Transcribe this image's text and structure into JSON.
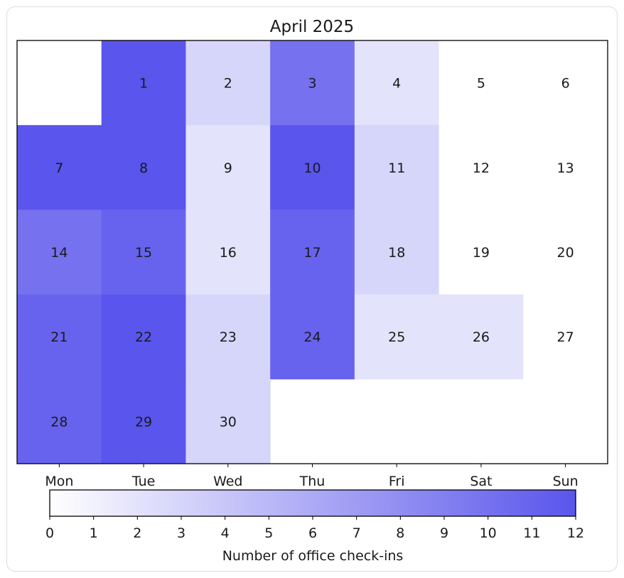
{
  "chart_data": {
    "type": "heatmap",
    "title": "April 2025",
    "x_labels": [
      "Mon",
      "Tue",
      "Wed",
      "Thu",
      "Fri",
      "Sat",
      "Sun"
    ],
    "colorbar": {
      "label": "Number of office check-ins",
      "min": 0,
      "max": 12,
      "ticks": [
        0,
        1,
        2,
        3,
        4,
        5,
        6,
        7,
        8,
        9,
        10,
        11,
        12
      ],
      "color_low": "#ffffff",
      "color_high": "#5a55ec"
    },
    "cells": [
      {
        "day": 1,
        "value": 12
      },
      {
        "day": 2,
        "value": 3
      },
      {
        "day": 3,
        "value": 10
      },
      {
        "day": 4,
        "value": 2
      },
      {
        "day": 5,
        "value": 0
      },
      {
        "day": 6,
        "value": 0
      },
      {
        "day": 7,
        "value": 12
      },
      {
        "day": 8,
        "value": 12
      },
      {
        "day": 9,
        "value": 2
      },
      {
        "day": 10,
        "value": 12
      },
      {
        "day": 11,
        "value": 3
      },
      {
        "day": 12,
        "value": 0
      },
      {
        "day": 13,
        "value": 0
      },
      {
        "day": 14,
        "value": 10
      },
      {
        "day": 15,
        "value": 11
      },
      {
        "day": 16,
        "value": 2
      },
      {
        "day": 17,
        "value": 11
      },
      {
        "day": 18,
        "value": 3
      },
      {
        "day": 19,
        "value": 0
      },
      {
        "day": 20,
        "value": 0
      },
      {
        "day": 21,
        "value": 11
      },
      {
        "day": 22,
        "value": 12
      },
      {
        "day": 23,
        "value": 3
      },
      {
        "day": 24,
        "value": 11
      },
      {
        "day": 25,
        "value": 2
      },
      {
        "day": 26,
        "value": 2
      },
      {
        "day": 27,
        "value": 0
      },
      {
        "day": 28,
        "value": 11
      },
      {
        "day": 29,
        "value": 12
      },
      {
        "day": 30,
        "value": 3
      }
    ]
  }
}
